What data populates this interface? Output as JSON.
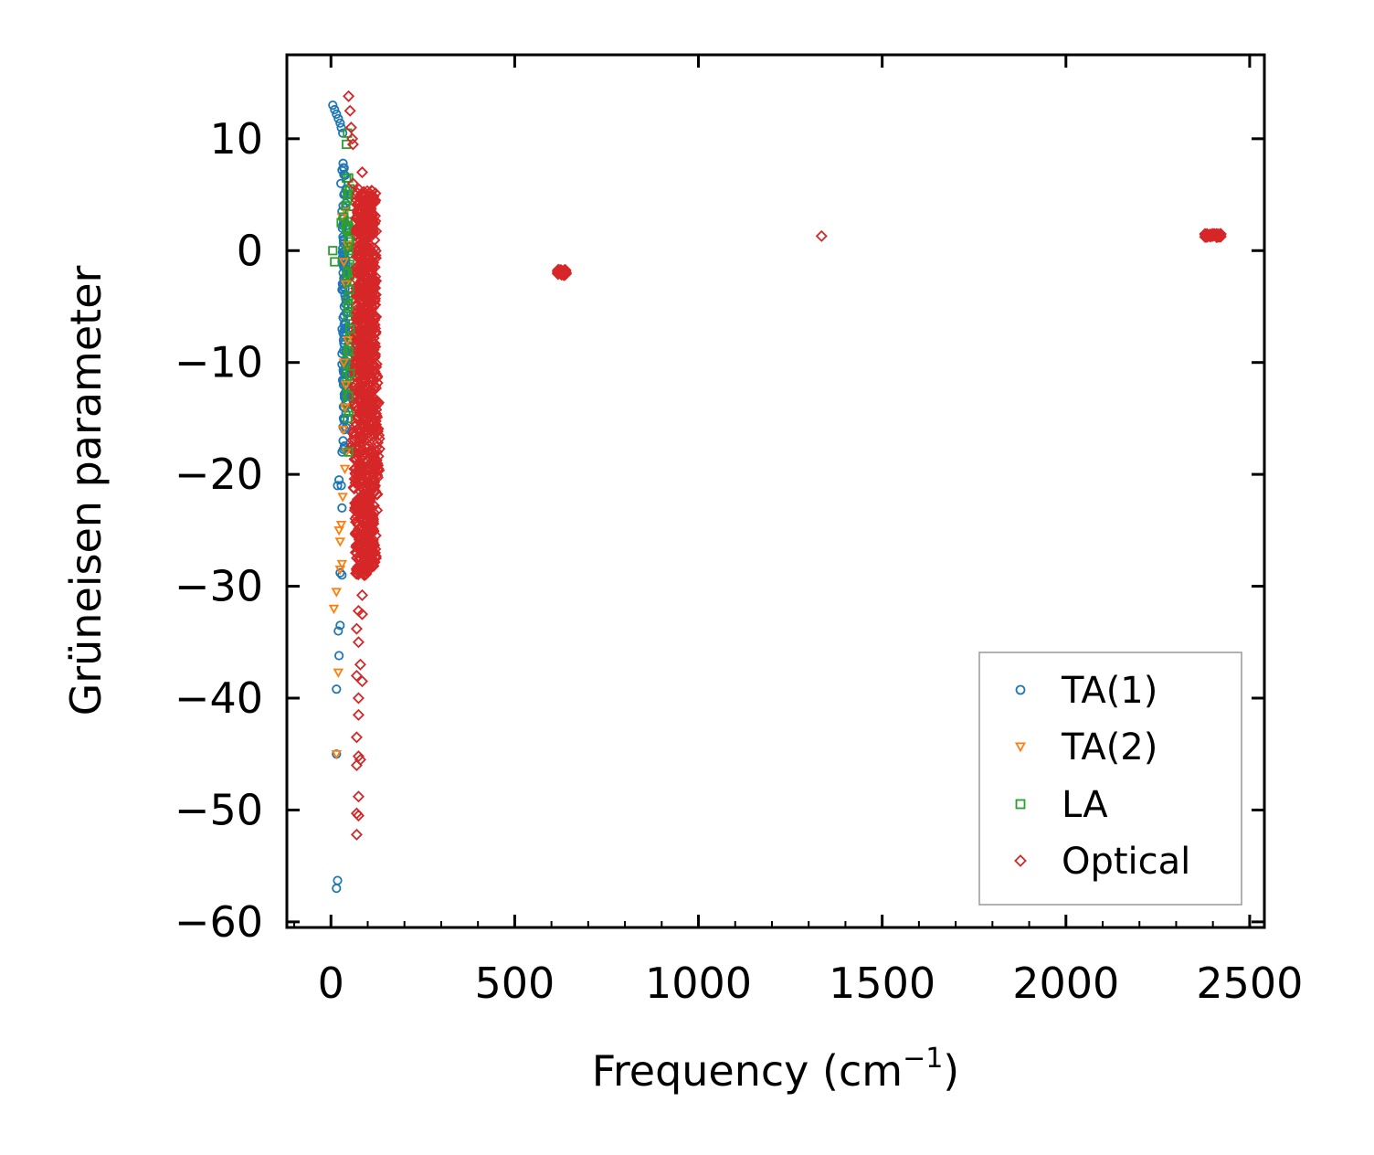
{
  "chart_data": {
    "type": "scatter",
    "xlabel": "Frequency (cm",
    "xlabel_sup": "−1",
    "xlabel_end": ")",
    "ylabel": "Grüneisen parameter",
    "xlim": [
      -120,
      2540
    ],
    "ylim": [
      -60.5,
      17.5
    ],
    "x_ticks": [
      0,
      500,
      1000,
      1500,
      2000,
      2500
    ],
    "x_tick_labels": [
      "0",
      "500",
      "1000",
      "1500",
      "2000",
      "2500"
    ],
    "y_ticks": [
      -60,
      -50,
      -40,
      -30,
      -20,
      -10,
      0,
      10
    ],
    "y_tick_labels": [
      "−60",
      "−50",
      "−40",
      "−30",
      "−20",
      "−10",
      "0",
      "10"
    ],
    "legend_position": "lower-right",
    "series": [
      {
        "name": "TA(1)",
        "marker": "circle",
        "color": "#1f77b4",
        "points": [
          [
            5,
            13.0
          ],
          [
            10,
            12.6
          ],
          [
            15,
            12.2
          ],
          [
            20,
            11.8
          ],
          [
            25,
            11.4
          ],
          [
            28,
            11.0
          ],
          [
            32,
            10.5
          ],
          [
            33,
            7.8
          ],
          [
            34,
            7.4
          ],
          [
            30,
            7.2
          ],
          [
            35,
            6.8
          ],
          [
            27,
            6.0
          ],
          [
            35,
            5.0
          ],
          [
            33,
            4.0
          ],
          [
            30,
            3.5
          ],
          [
            36,
            3.0
          ],
          [
            31,
            2.0
          ],
          [
            34,
            1.0
          ],
          [
            32,
            0.2
          ],
          [
            36,
            -1.0
          ],
          [
            33,
            -2.0
          ],
          [
            35,
            -3.0
          ],
          [
            30,
            -3.5
          ],
          [
            38,
            -4.0
          ],
          [
            36,
            -5.0
          ],
          [
            33,
            -6.0
          ],
          [
            37,
            -7.0
          ],
          [
            34,
            -8.0
          ],
          [
            40,
            -9.0
          ],
          [
            36,
            -10.0
          ],
          [
            38,
            -11.0
          ],
          [
            34,
            -12.0
          ],
          [
            39,
            -13.0
          ],
          [
            36,
            -14.0
          ],
          [
            34,
            -15.0
          ],
          [
            37,
            -16.0
          ],
          [
            33,
            -17.0
          ],
          [
            30,
            -18.0
          ],
          [
            22,
            -20.5
          ],
          [
            18,
            -21.0
          ],
          [
            28,
            -21.0
          ],
          [
            30,
            -23.0
          ],
          [
            25,
            -28.8
          ],
          [
            30,
            -29.0
          ],
          [
            25,
            -33.5
          ],
          [
            20,
            -34.0
          ],
          [
            22,
            -36.2
          ],
          [
            15,
            -39.2
          ],
          [
            15,
            -45.0
          ],
          [
            18,
            -56.3
          ],
          [
            15,
            -57.0
          ]
        ]
      },
      {
        "name": "TA(2)",
        "marker": "triangle-down",
        "color": "#ff7f0e",
        "points": [
          [
            40,
            3.5
          ],
          [
            30,
            3.0
          ],
          [
            45,
            0.5
          ],
          [
            35,
            -1.0
          ],
          [
            40,
            -3.0
          ],
          [
            45,
            -8.0
          ],
          [
            35,
            -10.0
          ],
          [
            40,
            -12.0
          ],
          [
            38,
            -14.0
          ],
          [
            33,
            -16.0
          ],
          [
            42,
            -18.0
          ],
          [
            38,
            -19.5
          ],
          [
            32,
            -22.0
          ],
          [
            28,
            -24.5
          ],
          [
            22,
            -25.0
          ],
          [
            25,
            -26.0
          ],
          [
            30,
            -28.0
          ],
          [
            25,
            -28.5
          ],
          [
            15,
            -30.5
          ],
          [
            8,
            -32.0
          ],
          [
            20,
            -37.7
          ],
          [
            15,
            -45.0
          ]
        ]
      },
      {
        "name": "LA",
        "marker": "square",
        "color": "#2ca02c",
        "points": [
          [
            45,
            10.5
          ],
          [
            42,
            9.5
          ],
          [
            48,
            6.5
          ],
          [
            45,
            5.0
          ],
          [
            40,
            4.0
          ],
          [
            35,
            3.0
          ],
          [
            28,
            2.5
          ],
          [
            42,
            2.0
          ],
          [
            50,
            1.0
          ],
          [
            48,
            0.0
          ],
          [
            10,
            -1.0
          ],
          [
            45,
            -2.0
          ],
          [
            50,
            -3.5
          ],
          [
            48,
            -5.0
          ],
          [
            52,
            -7.0
          ],
          [
            48,
            -9.0
          ],
          [
            52,
            -11.0
          ],
          [
            48,
            -13.0
          ],
          [
            45,
            -15.0
          ],
          [
            48,
            -18.0
          ],
          [
            5,
            0.0
          ]
        ]
      },
      {
        "name": "Optical",
        "marker": "diamond",
        "color": "#d62728",
        "points": [
          [
            48,
            13.8
          ],
          [
            52,
            12.5
          ],
          [
            55,
            11.0
          ],
          [
            58,
            10.0
          ],
          [
            60,
            9.5
          ],
          [
            85,
            7.0
          ],
          [
            60,
            6.0
          ],
          [
            70,
            4.5
          ],
          [
            75,
            3.0
          ],
          [
            80,
            1.5
          ],
          [
            90,
            0.5
          ],
          [
            85,
            -1.0
          ],
          [
            100,
            -1.5
          ],
          [
            110,
            -2.0
          ],
          [
            95,
            -3.0
          ],
          [
            120,
            -4.0
          ],
          [
            90,
            -5.5
          ],
          [
            110,
            -6.5
          ],
          [
            100,
            -8.0
          ],
          [
            115,
            -9.5
          ],
          [
            105,
            -11.0
          ],
          [
            110,
            -12.5
          ],
          [
            120,
            -14.0
          ],
          [
            115,
            -15.5
          ],
          [
            130,
            -16.5
          ],
          [
            125,
            -18.0
          ],
          [
            110,
            -19.5
          ],
          [
            120,
            -21.0
          ],
          [
            105,
            -22.5
          ],
          [
            115,
            -24.0
          ],
          [
            100,
            -25.5
          ],
          [
            110,
            -27.0
          ],
          [
            95,
            -28.5
          ],
          [
            90,
            -29.0
          ],
          [
            85,
            -30.8
          ],
          [
            75,
            -32.2
          ],
          [
            85,
            -32.5
          ],
          [
            70,
            -33.8
          ],
          [
            75,
            -35.0
          ],
          [
            80,
            -37.0
          ],
          [
            70,
            -38.0
          ],
          [
            85,
            -38.5
          ],
          [
            75,
            -40.0
          ],
          [
            75,
            -41.5
          ],
          [
            70,
            -43.5
          ],
          [
            75,
            -45.2
          ],
          [
            80,
            -45.5
          ],
          [
            70,
            -46.0
          ],
          [
            75,
            -48.8
          ],
          [
            70,
            -50.3
          ],
          [
            75,
            -50.5
          ],
          [
            70,
            -52.2
          ],
          [
            620,
            -1.8
          ],
          [
            625,
            -2.0
          ],
          [
            630,
            -1.9
          ],
          [
            635,
            -2.1
          ],
          [
            640,
            -2.0
          ],
          [
            618,
            -2.1
          ],
          [
            1335,
            1.3
          ],
          [
            2390,
            1.4
          ],
          [
            2400,
            1.3
          ],
          [
            2410,
            1.4
          ],
          [
            2420,
            1.3
          ],
          [
            2380,
            1.4
          ]
        ]
      }
    ],
    "dense_bands": [
      {
        "series": "Optical",
        "x_center": 95,
        "x_spread": 28,
        "y_from": -29.0,
        "y_to": 5.5,
        "count": 950,
        "bulge_y": -17,
        "bulge_width": 12
      },
      {
        "series": "TA(1)",
        "x_center": 36,
        "x_spread": 6,
        "y_from": -18.0,
        "y_to": 7.5,
        "count": 80,
        "bulge_y": 0,
        "bulge_width": 0
      },
      {
        "series": "LA",
        "x_center": 47,
        "x_spread": 5,
        "y_from": -15.0,
        "y_to": 7.0,
        "count": 60,
        "bulge_y": 0,
        "bulge_width": 0
      },
      {
        "series": "Optical",
        "x_center": 628,
        "x_spread": 12,
        "y_from": -2.2,
        "y_to": -1.7,
        "count": 40,
        "bulge_y": 0,
        "bulge_width": 0
      },
      {
        "series": "Optical",
        "x_center": 2400,
        "x_spread": 22,
        "y_from": 1.2,
        "y_to": 1.5,
        "count": 50,
        "bulge_y": 0,
        "bulge_width": 0
      }
    ]
  }
}
